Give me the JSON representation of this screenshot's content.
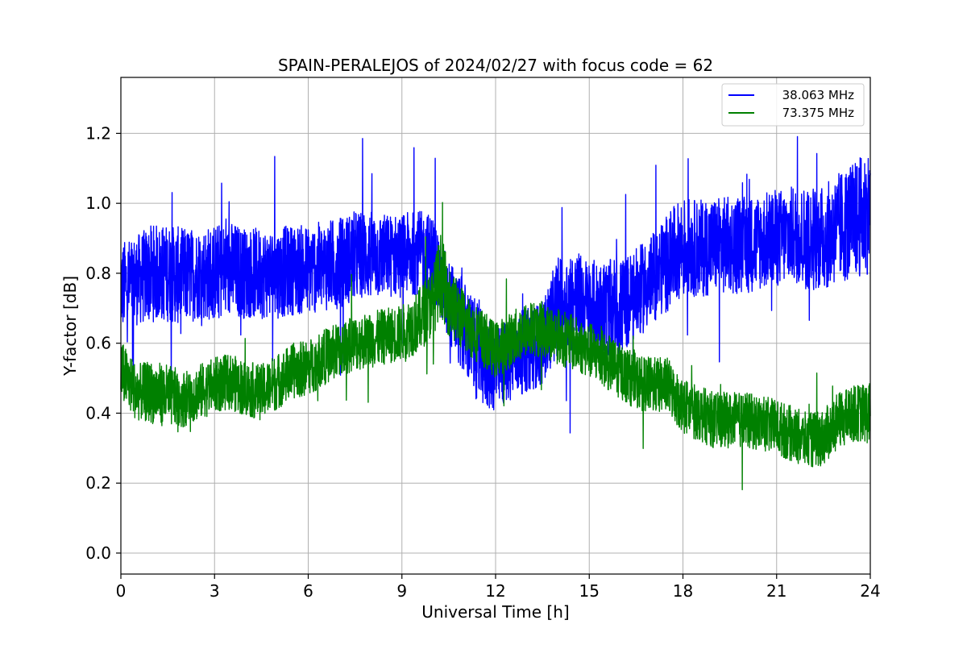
{
  "chart_data": {
    "type": "line",
    "title": "SPAIN-PERALEJOS of 2024/02/27 with focus code = 62",
    "xlabel": "Universal Time [h]",
    "ylabel": "Y-factor [dB]",
    "xlim": [
      0,
      24
    ],
    "ylim": [
      -0.06,
      1.36
    ],
    "x_ticks": [
      0,
      3,
      6,
      9,
      12,
      15,
      18,
      21,
      24
    ],
    "y_ticks": [
      0.0,
      0.2,
      0.4,
      0.6,
      0.8,
      1.0,
      1.2
    ],
    "x_tick_labels": [
      "0",
      "3",
      "6",
      "9",
      "12",
      "15",
      "18",
      "21",
      "24"
    ],
    "y_tick_labels": [
      "0.0",
      "0.2",
      "0.4",
      "0.6",
      "0.8",
      "1.0",
      "1.2"
    ],
    "grid": true,
    "legend_position": "top-right",
    "x": [
      0,
      0.5,
      1,
      1.5,
      2,
      2.5,
      3,
      3.5,
      4,
      4.5,
      5,
      5.5,
      6,
      6.5,
      7,
      7.5,
      8,
      8.5,
      9,
      9.5,
      10,
      10.25,
      10.5,
      11,
      11.5,
      12,
      12.5,
      13,
      13.5,
      14,
      14.5,
      15,
      15.5,
      16,
      16.5,
      17,
      17.5,
      18,
      18.5,
      19,
      19.5,
      20,
      20.5,
      21,
      21.5,
      22,
      22.5,
      23,
      23.5,
      24
    ],
    "series": [
      {
        "name": "38.063 MHz",
        "color": "#0000ff",
        "values": [
          0.76,
          0.78,
          0.8,
          0.8,
          0.79,
          0.8,
          0.8,
          0.81,
          0.8,
          0.8,
          0.8,
          0.81,
          0.81,
          0.82,
          0.83,
          0.85,
          0.85,
          0.85,
          0.85,
          0.86,
          0.85,
          0.78,
          0.72,
          0.64,
          0.56,
          0.52,
          0.56,
          0.58,
          0.6,
          0.71,
          0.72,
          0.7,
          0.7,
          0.7,
          0.74,
          0.78,
          0.83,
          0.88,
          0.87,
          0.88,
          0.88,
          0.88,
          0.89,
          0.9,
          0.91,
          0.9,
          0.9,
          0.93,
          0.95,
          0.98
        ],
        "spread": [
          0.13,
          0.13,
          0.14,
          0.14,
          0.14,
          0.13,
          0.14,
          0.14,
          0.13,
          0.13,
          0.13,
          0.13,
          0.13,
          0.13,
          0.13,
          0.13,
          0.13,
          0.12,
          0.12,
          0.12,
          0.12,
          0.12,
          0.12,
          0.14,
          0.14,
          0.12,
          0.12,
          0.12,
          0.12,
          0.14,
          0.15,
          0.14,
          0.14,
          0.14,
          0.13,
          0.13,
          0.14,
          0.14,
          0.14,
          0.14,
          0.14,
          0.14,
          0.14,
          0.14,
          0.14,
          0.15,
          0.15,
          0.16,
          0.17,
          0.18
        ]
      },
      {
        "name": "73.375 MHz",
        "color": "#008000",
        "values": [
          0.52,
          0.46,
          0.46,
          0.45,
          0.44,
          0.46,
          0.48,
          0.49,
          0.47,
          0.46,
          0.49,
          0.52,
          0.53,
          0.56,
          0.58,
          0.6,
          0.61,
          0.62,
          0.63,
          0.66,
          0.72,
          0.8,
          0.72,
          0.66,
          0.62,
          0.58,
          0.61,
          0.64,
          0.64,
          0.62,
          0.6,
          0.58,
          0.55,
          0.52,
          0.49,
          0.48,
          0.48,
          0.42,
          0.4,
          0.38,
          0.38,
          0.38,
          0.37,
          0.36,
          0.34,
          0.32,
          0.33,
          0.38,
          0.4,
          0.4
        ],
        "spread": [
          0.09,
          0.08,
          0.09,
          0.09,
          0.08,
          0.08,
          0.08,
          0.08,
          0.08,
          0.08,
          0.08,
          0.08,
          0.08,
          0.08,
          0.08,
          0.08,
          0.08,
          0.08,
          0.08,
          0.09,
          0.1,
          0.12,
          0.1,
          0.09,
          0.08,
          0.08,
          0.08,
          0.08,
          0.08,
          0.08,
          0.08,
          0.08,
          0.08,
          0.08,
          0.08,
          0.08,
          0.08,
          0.08,
          0.08,
          0.08,
          0.08,
          0.08,
          0.08,
          0.08,
          0.08,
          0.08,
          0.08,
          0.08,
          0.08,
          0.09
        ]
      }
    ]
  }
}
